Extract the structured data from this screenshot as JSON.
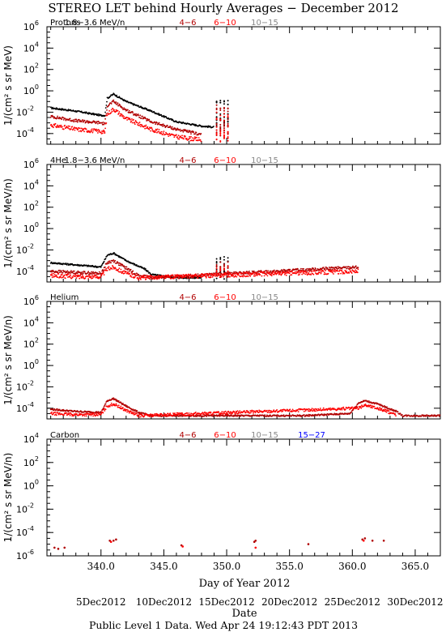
{
  "title": "STEREO LET behind Hourly Averages − December 2012",
  "xlabel": "Day of Year 2012",
  "date_label": "Date",
  "footer": "Public Level 1 Data. Wed Apr 24 19:12:43 PDT 2013",
  "x_ticks": [
    "340.0",
    "345.0",
    "350.0",
    "355.0",
    "360.0",
    "365.0"
  ],
  "date_ticks": [
    "5Dec2012",
    "10Dec2012",
    "15Dec2012",
    "20Dec2012",
    "25Dec2012",
    "30Dec2012"
  ],
  "colors": {
    "black": "#000000",
    "dark_red": "#b00000",
    "red": "#ff0000",
    "gray": "#888888",
    "blue": "#0000ff"
  },
  "chart_data": [
    {
      "type": "scatter",
      "log_y": true,
      "ylabel": "1/(cm² s sr MeV)",
      "ylim_exp": [
        -5,
        6
      ],
      "y_ticks": [
        "10^-4",
        "10^-2",
        "10^0",
        "10^2",
        "10^4",
        "10^6"
      ],
      "xlim": [
        335.7,
        367.0
      ],
      "species": "Protons",
      "channels": [
        "1.8−3.6 MeV/n",
        "4−6",
        "6−10",
        "10−15"
      ],
      "series": [
        {
          "name": "1.8−3.6 MeV/n",
          "color": "black",
          "points": [
            [
              336,
              -1.6
            ],
            [
              338,
              -1.9
            ],
            [
              340,
              -2.3
            ],
            [
              340.3,
              -2.3
            ],
            [
              340.5,
              -0.7
            ],
            [
              341,
              -0.3
            ],
            [
              342,
              -1
            ],
            [
              344,
              -1.9
            ],
            [
              346,
              -2.9
            ],
            [
              348,
              -3.3
            ],
            [
              349,
              -3.4
            ],
            [
              350.5,
              -2.9
            ],
            [
              352,
              -2.9
            ],
            [
              356,
              -2.8
            ],
            [
              359,
              -2.6
            ],
            [
              360.5,
              -1.1
            ],
            [
              361,
              -0.9
            ],
            [
              362,
              -1.1
            ],
            [
              364,
              -2
            ],
            [
              366,
              -2.4
            ],
            [
              367,
              -2.5
            ]
          ]
        },
        {
          "name": "4−6",
          "color": "dark_red",
          "points": [
            [
              336,
              -2.4
            ],
            [
              338,
              -2.8
            ],
            [
              340,
              -3
            ],
            [
              340.3,
              -3.1
            ],
            [
              340.5,
              -1.4
            ],
            [
              341,
              -1
            ],
            [
              342,
              -1.8
            ],
            [
              344,
              -2.9
            ],
            [
              346,
              -3.6
            ],
            [
              348,
              -4.1
            ],
            [
              350.5,
              -3.8
            ],
            [
              352,
              -3.5
            ],
            [
              356,
              -3.4
            ],
            [
              359,
              -3.3
            ],
            [
              360.5,
              -1.8
            ],
            [
              361,
              -1.5
            ],
            [
              362,
              -1.8
            ],
            [
              364,
              -2.8
            ],
            [
              366,
              -3.2
            ],
            [
              367,
              -3.3
            ]
          ]
        },
        {
          "name": "6−10",
          "color": "red",
          "points": [
            [
              336,
              -3.2
            ],
            [
              338,
              -3.6
            ],
            [
              340,
              -3.8
            ],
            [
              340.3,
              -3.9
            ],
            [
              340.5,
              -2.2
            ],
            [
              341,
              -1.7
            ],
            [
              342,
              -2.6
            ],
            [
              344,
              -3.6
            ],
            [
              346,
              -4.3
            ],
            [
              348,
              -4.6
            ],
            [
              350.5,
              -4.5
            ],
            [
              352,
              -4.2
            ],
            [
              356,
              -4
            ],
            [
              359,
              -3.8
            ],
            [
              360.5,
              -2.6
            ],
            [
              361,
              -2.2
            ],
            [
              362,
              -2.6
            ],
            [
              364,
              -3.5
            ],
            [
              366,
              -4
            ],
            [
              367,
              -4.1
            ]
          ]
        }
      ]
    },
    {
      "type": "scatter",
      "log_y": true,
      "ylabel": "1/(cm² s sr MeV/n)",
      "ylim_exp": [
        -5,
        6
      ],
      "y_ticks": [
        "10^-4",
        "10^-2",
        "10^0",
        "10^2",
        "10^4",
        "10^6"
      ],
      "xlim": [
        335.7,
        367.0
      ],
      "species": "4He",
      "channels": [
        "1.8−3.6 MeV/n",
        "4−6",
        "6−10",
        "10−15"
      ],
      "series": [
        {
          "name": "1.8−3.6 MeV/n",
          "color": "black",
          "points": [
            [
              336,
              -3.2
            ],
            [
              338,
              -3.4
            ],
            [
              340,
              -3.6
            ],
            [
              340.5,
              -2.5
            ],
            [
              341,
              -2.3
            ],
            [
              342,
              -3
            ],
            [
              343.5,
              -3.8
            ],
            [
              344,
              -4.3
            ],
            [
              346,
              -4.6
            ],
            [
              348,
              -4.6
            ],
            [
              350.5,
              -4.2
            ],
            [
              352,
              -4
            ],
            [
              356,
              -3.9
            ],
            [
              359,
              -3.8
            ],
            [
              360.5,
              -3
            ],
            [
              361,
              -2.8
            ],
            [
              362,
              -3.1
            ],
            [
              364,
              -3.9
            ],
            [
              366,
              -4.2
            ],
            [
              367,
              -4.2
            ]
          ]
        },
        {
          "name": "4−6",
          "color": "dark_red",
          "points": [
            [
              336,
              -4
            ],
            [
              338,
              -4.1
            ],
            [
              340,
              -4.2
            ],
            [
              340.5,
              -3.2
            ],
            [
              341,
              -3
            ],
            [
              342,
              -3.7
            ],
            [
              343,
              -4.4
            ],
            [
              344,
              -4.6
            ],
            [
              360.5,
              -3.6
            ],
            [
              361,
              -3.3
            ],
            [
              362,
              -3.7
            ],
            [
              364,
              -4.4
            ],
            [
              366,
              -4.6
            ]
          ]
        },
        {
          "name": "6−10",
          "color": "red",
          "points": [
            [
              336,
              -4.4
            ],
            [
              338,
              -4.5
            ],
            [
              340,
              -4.5
            ],
            [
              340.5,
              -3.8
            ],
            [
              341,
              -3.6
            ],
            [
              342,
              -4.2
            ],
            [
              343,
              -4.6
            ],
            [
              360.5,
              -4
            ],
            [
              361,
              -3.8
            ],
            [
              362,
              -4.1
            ],
            [
              364,
              -4.6
            ]
          ]
        }
      ]
    },
    {
      "type": "scatter",
      "log_y": true,
      "ylabel": "1/(cm² s sr MeV/n)",
      "ylim_exp": [
        -5,
        6
      ],
      "y_ticks": [
        "10^-4",
        "10^-2",
        "10^0",
        "10^2",
        "10^4",
        "10^6"
      ],
      "xlim": [
        335.7,
        367.0
      ],
      "species": "Helium",
      "channels": [
        "4−6",
        "6−10",
        "10−15"
      ],
      "series": [
        {
          "name": "4−6",
          "color": "dark_red",
          "points": [
            [
              336,
              -4.1
            ],
            [
              338,
              -4.3
            ],
            [
              340,
              -4.4
            ],
            [
              340.5,
              -3.3
            ],
            [
              341,
              -3.1
            ],
            [
              342,
              -3.8
            ],
            [
              343,
              -4.4
            ],
            [
              344,
              -4.7
            ],
            [
              346,
              -4.7
            ],
            [
              350,
              -4.7
            ],
            [
              356,
              -4.7
            ],
            [
              359.8,
              -4.5
            ],
            [
              360.5,
              -3.5
            ],
            [
              361,
              -3.3
            ],
            [
              362,
              -3.6
            ],
            [
              363.5,
              -4.3
            ],
            [
              364,
              -4.7
            ],
            [
              367,
              -4.7
            ]
          ]
        },
        {
          "name": "6−10",
          "color": "red",
          "points": [
            [
              336,
              -4.5
            ],
            [
              338,
              -4.6
            ],
            [
              340,
              -4.6
            ],
            [
              340.5,
              -3.8
            ],
            [
              341,
              -3.6
            ],
            [
              342,
              -4.2
            ],
            [
              343,
              -4.7
            ],
            [
              360.5,
              -4
            ],
            [
              361,
              -3.7
            ],
            [
              362,
              -4
            ],
            [
              363.5,
              -4.6
            ]
          ]
        }
      ]
    },
    {
      "type": "scatter",
      "log_y": true,
      "ylabel": "1/(cm² s sr MeV/n)",
      "ylim_exp": [
        -6,
        4
      ],
      "y_ticks": [
        "10^-6",
        "10^-4",
        "10^-2",
        "10^0",
        "10^2",
        "10^4"
      ],
      "xlim": [
        335.7,
        367.0
      ],
      "species": "Carbon",
      "channels": [
        "4−6",
        "6−10",
        "10−15",
        "15−27"
      ],
      "series": [
        {
          "name": "4−6",
          "color": "dark_red",
          "points": [
            [
              336.3,
              -5.3
            ],
            [
              336.6,
              -5.4
            ],
            [
              337.1,
              -5.3
            ],
            [
              340.7,
              -4.7
            ],
            [
              341.0,
              -4.7
            ],
            [
              341.2,
              -4.6
            ],
            [
              346.4,
              -5.1
            ],
            [
              352.2,
              -4.8
            ],
            [
              352.3,
              -4.7
            ],
            [
              356.5,
              -5
            ],
            [
              360.8,
              -4.6
            ],
            [
              361.0,
              -4.5
            ],
            [
              361.6,
              -4.7
            ],
            [
              362.5,
              -4.7
            ]
          ]
        },
        {
          "name": "6−10",
          "color": "red",
          "points": [
            [
              340.8,
              -4.8
            ],
            [
              346.5,
              -5.2
            ],
            [
              352.3,
              -5.3
            ],
            [
              360.9,
              -4.7
            ]
          ]
        }
      ]
    }
  ]
}
